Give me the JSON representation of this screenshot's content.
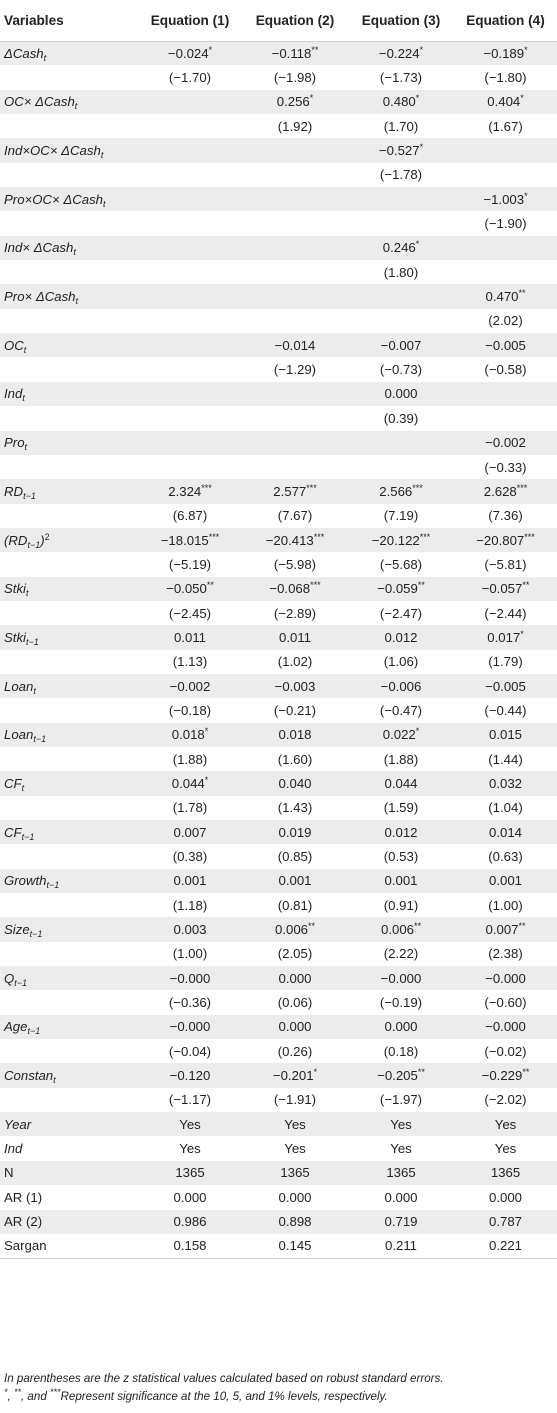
{
  "table": {
    "headers": [
      "Variables",
      "Equation (1)",
      "Equation (2)",
      "Equation (3)",
      "Equation (4)"
    ],
    "rows": [
      {
        "label": "ΔCash",
        "sub": "t",
        "italic": true,
        "values": [
          "−0.024",
          "−0.118",
          "−0.224",
          "−0.189"
        ],
        "sig": [
          "*",
          "**",
          "*",
          "*"
        ]
      },
      {
        "label": "",
        "sub": "",
        "italic": false,
        "values": [
          "(−1.70)",
          "(−1.98)",
          "(−1.73)",
          "(−1.80)"
        ],
        "sig": [
          "",
          "",
          "",
          ""
        ]
      },
      {
        "label": "OC× ΔCash",
        "sub": "t",
        "italic": true,
        "values": [
          "",
          "0.256",
          "0.480",
          "0.404"
        ],
        "sig": [
          "",
          "*",
          "*",
          "*"
        ]
      },
      {
        "label": "",
        "sub": "",
        "italic": false,
        "values": [
          "",
          "(1.92)",
          "(1.70)",
          "(1.67)"
        ],
        "sig": [
          "",
          "",
          "",
          ""
        ]
      },
      {
        "label": "Ind×OC× ΔCash",
        "sub": "t",
        "italic": true,
        "values": [
          "",
          "",
          "−0.527",
          ""
        ],
        "sig": [
          "",
          "",
          "*",
          ""
        ]
      },
      {
        "label": "",
        "sub": "",
        "italic": false,
        "values": [
          "",
          "",
          "(−1.78)",
          ""
        ],
        "sig": [
          "",
          "",
          "",
          ""
        ]
      },
      {
        "label": "Pro×OC× ΔCash",
        "sub": "t",
        "italic": true,
        "values": [
          "",
          "",
          "",
          "−1.003"
        ],
        "sig": [
          "",
          "",
          "",
          "*"
        ]
      },
      {
        "label": "",
        "sub": "",
        "italic": false,
        "values": [
          "",
          "",
          "",
          "(−1.90)"
        ],
        "sig": [
          "",
          "",
          "",
          ""
        ]
      },
      {
        "label": "Ind× ΔCash",
        "sub": "t",
        "italic": true,
        "values": [
          "",
          "",
          "0.246",
          ""
        ],
        "sig": [
          "",
          "",
          "*",
          ""
        ]
      },
      {
        "label": "",
        "sub": "",
        "italic": false,
        "values": [
          "",
          "",
          "(1.80)",
          ""
        ],
        "sig": [
          "",
          "",
          "",
          ""
        ]
      },
      {
        "label": "Pro× ΔCash",
        "sub": "t",
        "italic": true,
        "values": [
          "",
          "",
          "",
          "0.470"
        ],
        "sig": [
          "",
          "",
          "",
          "**"
        ]
      },
      {
        "label": "",
        "sub": "",
        "italic": false,
        "values": [
          "",
          "",
          "",
          "(2.02)"
        ],
        "sig": [
          "",
          "",
          "",
          ""
        ]
      },
      {
        "label": "OC",
        "sub": "t",
        "italic": true,
        "values": [
          "",
          "−0.014",
          "−0.007",
          "−0.005"
        ],
        "sig": [
          "",
          "",
          "",
          ""
        ]
      },
      {
        "label": "",
        "sub": "",
        "italic": false,
        "values": [
          "",
          "(−1.29)",
          "(−0.73)",
          "(−0.58)"
        ],
        "sig": [
          "",
          "",
          "",
          ""
        ]
      },
      {
        "label": "Ind",
        "sub": "t",
        "italic": true,
        "values": [
          "",
          "",
          "0.000",
          ""
        ],
        "sig": [
          "",
          "",
          "",
          ""
        ]
      },
      {
        "label": "",
        "sub": "",
        "italic": false,
        "values": [
          "",
          "",
          "(0.39)",
          ""
        ],
        "sig": [
          "",
          "",
          "",
          ""
        ]
      },
      {
        "label": "Pro",
        "sub": "t",
        "italic": true,
        "values": [
          "",
          "",
          "",
          "−0.002"
        ],
        "sig": [
          "",
          "",
          "",
          ""
        ]
      },
      {
        "label": "",
        "sub": "",
        "italic": false,
        "values": [
          "",
          "",
          "",
          "(−0.33)"
        ],
        "sig": [
          "",
          "",
          "",
          ""
        ]
      },
      {
        "label": "RD",
        "sub": "t−1",
        "italic": true,
        "values": [
          "2.324",
          "2.577",
          "2.566",
          "2.628"
        ],
        "sig": [
          "***",
          "***",
          "***",
          "***"
        ]
      },
      {
        "label": "",
        "sub": "",
        "italic": false,
        "values": [
          "(6.87)",
          "(7.67)",
          "(7.19)",
          "(7.36)"
        ],
        "sig": [
          "",
          "",
          "",
          ""
        ]
      },
      {
        "label": "(RD",
        "sub": "t−1",
        "after": ")",
        "sup": "2",
        "italic": true,
        "values": [
          "−18.015",
          "−20.413",
          "−20.122",
          "−20.807"
        ],
        "sig": [
          "***",
          "***",
          "***",
          "***"
        ]
      },
      {
        "label": "",
        "sub": "",
        "italic": false,
        "values": [
          "(−5.19)",
          "(−5.98)",
          "(−5.68)",
          "(−5.81)"
        ],
        "sig": [
          "",
          "",
          "",
          ""
        ]
      },
      {
        "label": "Stki",
        "sub": "t",
        "italic": true,
        "values": [
          "−0.050",
          "−0.068",
          "−0.059",
          "−0.057"
        ],
        "sig": [
          "**",
          "***",
          "**",
          "**"
        ]
      },
      {
        "label": "",
        "sub": "",
        "italic": false,
        "values": [
          "(−2.45)",
          "(−2.89)",
          "(−2.47)",
          "(−2.44)"
        ],
        "sig": [
          "",
          "",
          "",
          ""
        ]
      },
      {
        "label": "Stki",
        "sub": "t−1",
        "italic": true,
        "values": [
          "0.011",
          "0.011",
          "0.012",
          "0.017"
        ],
        "sig": [
          "",
          "",
          "",
          "*"
        ]
      },
      {
        "label": "",
        "sub": "",
        "italic": false,
        "values": [
          "(1.13)",
          "(1.02)",
          "(1.06)",
          "(1.79)"
        ],
        "sig": [
          "",
          "",
          "",
          ""
        ]
      },
      {
        "label": "Loan",
        "sub": "t",
        "italic": true,
        "values": [
          "−0.002",
          "−0.003",
          "−0.006",
          "−0.005"
        ],
        "sig": [
          "",
          "",
          "",
          ""
        ]
      },
      {
        "label": "",
        "sub": "",
        "italic": false,
        "values": [
          "(−0.18)",
          "(−0.21)",
          "(−0.47)",
          "(−0.44)"
        ],
        "sig": [
          "",
          "",
          "",
          ""
        ]
      },
      {
        "label": "Loan",
        "sub": "t−1",
        "italic": true,
        "values": [
          "0.018",
          "0.018",
          "0.022",
          "0.015"
        ],
        "sig": [
          "*",
          "",
          "*",
          ""
        ]
      },
      {
        "label": "",
        "sub": "",
        "italic": false,
        "values": [
          "(1.88)",
          "(1.60)",
          "(1.88)",
          "(1.44)"
        ],
        "sig": [
          "",
          "",
          "",
          ""
        ]
      },
      {
        "label": "CF",
        "sub": "t",
        "italic": true,
        "values": [
          "0.044",
          "0.040",
          "0.044",
          "0.032"
        ],
        "sig": [
          "*",
          "",
          "",
          ""
        ]
      },
      {
        "label": "",
        "sub": "",
        "italic": false,
        "values": [
          "(1.78)",
          "(1.43)",
          "(1.59)",
          "(1.04)"
        ],
        "sig": [
          "",
          "",
          "",
          ""
        ]
      },
      {
        "label": "CF",
        "sub": "t−1",
        "italic": true,
        "values": [
          "0.007",
          "0.019",
          "0.012",
          "0.014"
        ],
        "sig": [
          "",
          "",
          "",
          ""
        ]
      },
      {
        "label": "",
        "sub": "",
        "italic": false,
        "values": [
          "(0.38)",
          "(0.85)",
          "(0.53)",
          "(0.63)"
        ],
        "sig": [
          "",
          "",
          "",
          ""
        ]
      },
      {
        "label": "Growth",
        "sub": "t−1",
        "italic": true,
        "values": [
          "0.001",
          "0.001",
          "0.001",
          "0.001"
        ],
        "sig": [
          "",
          "",
          "",
          ""
        ]
      },
      {
        "label": "",
        "sub": "",
        "italic": false,
        "values": [
          "(1.18)",
          "(0.81)",
          "(0.91)",
          "(1.00)"
        ],
        "sig": [
          "",
          "",
          "",
          ""
        ]
      },
      {
        "label": "Size",
        "sub": "t−1",
        "italic": true,
        "values": [
          "0.003",
          "0.006",
          "0.006",
          "0.007"
        ],
        "sig": [
          "",
          "**",
          "**",
          "**"
        ]
      },
      {
        "label": "",
        "sub": "",
        "italic": false,
        "values": [
          "(1.00)",
          "(2.05)",
          "(2.22)",
          "(2.38)"
        ],
        "sig": [
          "",
          "",
          "",
          ""
        ]
      },
      {
        "label": "Q",
        "sub": "t−1",
        "italic": true,
        "values": [
          "−0.000",
          "0.000",
          "−0.000",
          "−0.000"
        ],
        "sig": [
          "",
          "",
          "",
          ""
        ]
      },
      {
        "label": "",
        "sub": "",
        "italic": false,
        "values": [
          "(−0.36)",
          "(0.06)",
          "(−0.19)",
          "(−0.60)"
        ],
        "sig": [
          "",
          "",
          "",
          ""
        ]
      },
      {
        "label": "Age",
        "sub": "t−1",
        "italic": true,
        "values": [
          "−0.000",
          "0.000",
          "0.000",
          "−0.000"
        ],
        "sig": [
          "",
          "",
          "",
          ""
        ]
      },
      {
        "label": "",
        "sub": "",
        "italic": false,
        "values": [
          "(−0.04)",
          "(0.26)",
          "(0.18)",
          "(−0.02)"
        ],
        "sig": [
          "",
          "",
          "",
          ""
        ]
      },
      {
        "label": "Constan",
        "sub": "t",
        "italic": true,
        "values": [
          "−0.120",
          "−0.201",
          "−0.205",
          "−0.229"
        ],
        "sig": [
          "",
          "*",
          "**",
          "**"
        ]
      },
      {
        "label": "",
        "sub": "",
        "italic": false,
        "values": [
          "(−1.17)",
          "(−1.91)",
          "(−1.97)",
          "(−2.02)"
        ],
        "sig": [
          "",
          "",
          "",
          ""
        ]
      },
      {
        "label": "Year",
        "sub": "",
        "italic": true,
        "values": [
          "Yes",
          "Yes",
          "Yes",
          "Yes"
        ],
        "sig": [
          "",
          "",
          "",
          ""
        ]
      },
      {
        "label": "Ind",
        "sub": "",
        "italic": true,
        "values": [
          "Yes",
          "Yes",
          "Yes",
          "Yes"
        ],
        "sig": [
          "",
          "",
          "",
          ""
        ]
      },
      {
        "label": "N",
        "sub": "",
        "italic": false,
        "values": [
          "1365",
          "1365",
          "1365",
          "1365"
        ],
        "sig": [
          "",
          "",
          "",
          ""
        ]
      },
      {
        "label": "AR (1)",
        "sub": "",
        "italic": false,
        "values": [
          "0.000",
          "0.000",
          "0.000",
          "0.000"
        ],
        "sig": [
          "",
          "",
          "",
          ""
        ]
      },
      {
        "label": "AR (2)",
        "sub": "",
        "italic": false,
        "values": [
          "0.986",
          "0.898",
          "0.719",
          "0.787"
        ],
        "sig": [
          "",
          "",
          "",
          ""
        ]
      },
      {
        "label": "Sargan",
        "sub": "",
        "italic": false,
        "values": [
          "0.158",
          "0.145",
          "0.211",
          "0.221"
        ],
        "sig": [
          "",
          "",
          "",
          ""
        ]
      }
    ]
  },
  "notes": {
    "line1": "In parentheses are the z statistical values calculated based on robust standard errors.",
    "line2_sym1": "*",
    "line2_sep1": ", ",
    "line2_sym2": "**",
    "line2_sep2": ", and ",
    "line2_sym3": "***",
    "line2_text": "Represent significance at the 10, 5, and 1% levels, respectively."
  }
}
